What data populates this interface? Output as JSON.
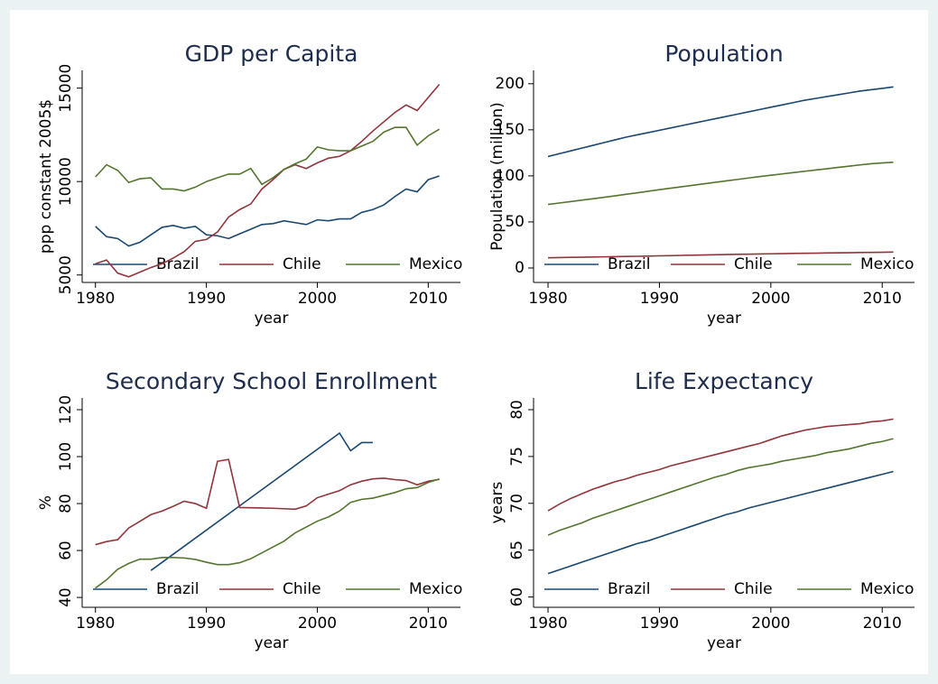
{
  "chart_data": [
    {
      "type": "line",
      "title": "GDP per Capita",
      "x_label": "year",
      "y_label": "ppp constant 2005$",
      "x": [
        1980,
        1981,
        1982,
        1983,
        1984,
        1985,
        1986,
        1987,
        1988,
        1989,
        1990,
        1991,
        1992,
        1993,
        1994,
        1995,
        1996,
        1997,
        1998,
        1999,
        2000,
        2001,
        2002,
        2003,
        2004,
        2005,
        2006,
        2007,
        2008,
        2009,
        2010,
        2011
      ],
      "xlim": [
        1978.8,
        2012.9
      ],
      "xticks": [
        1980,
        1990,
        2000,
        2010
      ],
      "ylim": [
        4600,
        15950
      ],
      "yticks": [
        5000,
        10000,
        15000
      ],
      "ytick_rotation": 90,
      "series": [
        {
          "name": "Brazil",
          "color": "#1a476f",
          "values": [
            7600,
            7050,
            6950,
            6550,
            6750,
            7150,
            7550,
            7650,
            7500,
            7600,
            7150,
            7100,
            6950,
            7200,
            7450,
            7700,
            7750,
            7900,
            7800,
            7700,
            7950,
            7900,
            8000,
            8000,
            8350,
            8500,
            8750,
            9200,
            9600,
            9450,
            10100,
            10300
          ]
        },
        {
          "name": "Chile",
          "color": "#90353b",
          "values": [
            5600,
            5800,
            5100,
            4900,
            5150,
            5400,
            5600,
            5900,
            6250,
            6800,
            6900,
            7300,
            8100,
            8500,
            8800,
            9600,
            10100,
            10650,
            10900,
            10700,
            11000,
            11250,
            11350,
            11650,
            12150,
            12700,
            13200,
            13700,
            14100,
            13800,
            14500,
            15200
          ]
        },
        {
          "name": "Mexico",
          "color": "#55752f",
          "values": [
            10250,
            10900,
            10600,
            9950,
            10150,
            10200,
            9600,
            9600,
            9500,
            9700,
            10000,
            10200,
            10400,
            10400,
            10700,
            9850,
            10200,
            10650,
            10950,
            11200,
            11850,
            11700,
            11650,
            11650,
            11900,
            12150,
            12650,
            12900,
            12900,
            11950,
            12450,
            12800
          ]
        }
      ]
    },
    {
      "type": "line",
      "title": "Population",
      "x_label": "year",
      "y_label": "Population (million)",
      "x": [
        1980,
        1981,
        1982,
        1983,
        1984,
        1985,
        1986,
        1987,
        1988,
        1989,
        1990,
        1991,
        1992,
        1993,
        1994,
        1995,
        1996,
        1997,
        1998,
        1999,
        2000,
        2001,
        2002,
        2003,
        2004,
        2005,
        2006,
        2007,
        2008,
        2009,
        2010,
        2011
      ],
      "xlim": [
        1978.7,
        2012.9
      ],
      "xticks": [
        1980,
        1990,
        2000,
        2010
      ],
      "ylim": [
        -15.7,
        214.5
      ],
      "yticks": [
        0,
        50,
        100,
        150,
        200
      ],
      "ytick_rotation": 0,
      "series": [
        {
          "name": "Brazil",
          "color": "#1a476f",
          "values": [
            121,
            124,
            127,
            130,
            133,
            136,
            139,
            142,
            144.5,
            147,
            149.5,
            152,
            154.5,
            157,
            159.5,
            162,
            164.5,
            167,
            169.5,
            172,
            174.5,
            177,
            179.5,
            182,
            184,
            186,
            188,
            190,
            192,
            193.5,
            195,
            196.6
          ]
        },
        {
          "name": "Chile",
          "color": "#90353b",
          "values": [
            11.1,
            11.3,
            11.5,
            11.7,
            11.9,
            12.1,
            12.3,
            12.5,
            12.7,
            12.9,
            13.2,
            13.4,
            13.7,
            13.9,
            14.1,
            14.4,
            14.6,
            14.8,
            15.0,
            15.2,
            15.4,
            15.6,
            15.8,
            16.0,
            16.1,
            16.3,
            16.4,
            16.6,
            16.8,
            16.9,
            17.1,
            17.3
          ]
        },
        {
          "name": "Mexico",
          "color": "#55752f",
          "values": [
            69,
            70.5,
            72,
            73.6,
            75.1,
            76.7,
            78.3,
            80,
            81.6,
            83.3,
            85,
            86.6,
            88.2,
            89.8,
            91.4,
            93,
            94.6,
            96.1,
            97.7,
            99.2,
            100.7,
            102.1,
            103.5,
            104.9,
            106.3,
            107.7,
            109.1,
            110.5,
            111.9,
            113.2,
            114,
            114.8
          ]
        }
      ]
    },
    {
      "type": "line",
      "title": "Secondary School Enrollment",
      "x_label": "year",
      "y_label": "%",
      "x": [
        1980,
        1981,
        1982,
        1983,
        1984,
        1985,
        1986,
        1987,
        1988,
        1989,
        1990,
        1991,
        1992,
        1993,
        1994,
        1995,
        1996,
        1997,
        1998,
        1999,
        2000,
        2001,
        2002,
        2003,
        2004,
        2005,
        2006,
        2007,
        2008,
        2009,
        2010,
        2011
      ],
      "xlim": [
        1978.8,
        2012.9
      ],
      "xticks": [
        1980,
        1990,
        2000,
        2010
      ],
      "ylim": [
        35.8,
        125
      ],
      "yticks": [
        40,
        60,
        80,
        100,
        120
      ],
      "ytick_rotation": 90,
      "series": [
        {
          "name": "Brazil",
          "color": "#1a476f",
          "x": [
            1985,
            2002,
            2003,
            2004,
            2005
          ],
          "values": [
            51.5,
            110,
            102.5,
            106,
            106
          ]
        },
        {
          "name": "Chile",
          "color": "#90353b",
          "values": [
            62.5,
            63.8,
            64.6,
            69.6,
            72.4,
            75.3,
            76.8,
            78.8,
            81,
            80,
            78,
            98,
            98.8,
            78.3,
            78.2,
            78.1,
            78,
            77.8,
            77.6,
            79,
            82.5,
            84,
            85.5,
            88,
            89.5,
            90.5,
            90.8,
            90.2,
            89.8,
            88,
            89.5,
            90.3
          ]
        },
        {
          "name": "Mexico",
          "color": "#55752f",
          "values": [
            44,
            47.5,
            52,
            54.5,
            56.3,
            56.3,
            57,
            57,
            56.8,
            56.2,
            55,
            54,
            54,
            54.8,
            56.5,
            59,
            61.5,
            64,
            67.5,
            70,
            72.5,
            74.3,
            76.8,
            80.5,
            81.8,
            82.3,
            83.5,
            84.7,
            86.3,
            86.8,
            89,
            90.5
          ]
        }
      ]
    },
    {
      "type": "line",
      "title": "Life Expectancy",
      "x_label": "year",
      "y_label": "years",
      "x": [
        1980,
        1981,
        1982,
        1983,
        1984,
        1985,
        1986,
        1987,
        1988,
        1989,
        1990,
        1991,
        1992,
        1993,
        1994,
        1995,
        1996,
        1997,
        1998,
        1999,
        2000,
        2001,
        2002,
        2003,
        2004,
        2005,
        2006,
        2007,
        2008,
        2009,
        2010,
        2011
      ],
      "xlim": [
        1978.7,
        2012.9
      ],
      "xticks": [
        1980,
        1990,
        2000,
        2010
      ],
      "ylim": [
        58.9,
        81.25
      ],
      "yticks": [
        60,
        65,
        70,
        75,
        80
      ],
      "ytick_rotation": 90,
      "series": [
        {
          "name": "Brazil",
          "color": "#1a476f",
          "values": [
            62.5,
            62.9,
            63.3,
            63.7,
            64.1,
            64.5,
            64.9,
            65.3,
            65.7,
            66.0,
            66.4,
            66.8,
            67.2,
            67.6,
            68.0,
            68.4,
            68.8,
            69.1,
            69.5,
            69.8,
            70.1,
            70.4,
            70.7,
            71.0,
            71.3,
            71.6,
            71.9,
            72.2,
            72.5,
            72.8,
            73.1,
            73.4
          ]
        },
        {
          "name": "Chile",
          "color": "#90353b",
          "values": [
            69.2,
            69.9,
            70.5,
            71.0,
            71.5,
            71.9,
            72.3,
            72.6,
            73.0,
            73.3,
            73.6,
            74.0,
            74.3,
            74.6,
            74.9,
            75.2,
            75.5,
            75.8,
            76.1,
            76.4,
            76.8,
            77.2,
            77.5,
            77.8,
            78.0,
            78.2,
            78.3,
            78.4,
            78.5,
            78.7,
            78.8,
            79.0
          ]
        },
        {
          "name": "Mexico",
          "color": "#55752f",
          "values": [
            66.6,
            67.1,
            67.5,
            67.9,
            68.4,
            68.8,
            69.2,
            69.6,
            70.0,
            70.4,
            70.8,
            71.2,
            71.6,
            72.0,
            72.4,
            72.8,
            73.1,
            73.5,
            73.8,
            74.0,
            74.2,
            74.5,
            74.7,
            74.9,
            75.1,
            75.4,
            75.6,
            75.8,
            76.1,
            76.4,
            76.6,
            76.9
          ]
        }
      ]
    }
  ]
}
